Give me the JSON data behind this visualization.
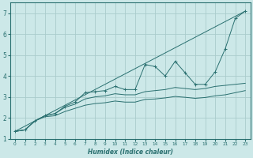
{
  "xlabel": "Humidex (Indice chaleur)",
  "xlim": [
    -0.5,
    23.5
  ],
  "ylim": [
    1.0,
    7.5
  ],
  "yticks": [
    1,
    2,
    3,
    4,
    5,
    6,
    7
  ],
  "xticks": [
    0,
    1,
    2,
    3,
    4,
    5,
    6,
    7,
    8,
    9,
    10,
    11,
    12,
    13,
    14,
    15,
    16,
    17,
    18,
    19,
    20,
    21,
    22,
    23
  ],
  "bg_color": "#cce8e8",
  "grid_color": "#aacccc",
  "line_color": "#2a7070",
  "series_jagged": {
    "x": [
      0,
      1,
      2,
      3,
      4,
      5,
      6,
      7,
      8,
      9,
      10,
      11,
      12,
      13,
      14,
      15,
      16,
      17,
      18,
      19,
      20,
      21,
      22,
      23
    ],
    "y": [
      1.35,
      1.42,
      1.85,
      2.1,
      2.2,
      2.55,
      2.75,
      3.2,
      3.25,
      3.3,
      3.5,
      3.35,
      3.35,
      4.55,
      4.45,
      4.0,
      4.7,
      4.15,
      3.6,
      3.6,
      4.2,
      5.3,
      6.75,
      7.1
    ]
  },
  "series_straight_top": {
    "x": [
      0,
      23
    ],
    "y": [
      1.35,
      7.1
    ]
  },
  "series_mid": {
    "x": [
      0,
      1,
      2,
      3,
      4,
      5,
      6,
      7,
      8,
      9,
      10,
      11,
      12,
      13,
      14,
      15,
      16,
      17,
      18,
      19,
      20,
      21,
      22,
      23
    ],
    "y": [
      1.35,
      1.42,
      1.85,
      2.1,
      2.2,
      2.5,
      2.65,
      2.9,
      3.0,
      3.05,
      3.15,
      3.1,
      3.1,
      3.25,
      3.3,
      3.35,
      3.45,
      3.4,
      3.35,
      3.4,
      3.5,
      3.55,
      3.6,
      3.65
    ]
  },
  "series_low": {
    "x": [
      0,
      1,
      2,
      3,
      4,
      5,
      6,
      7,
      8,
      9,
      10,
      11,
      12,
      13,
      14,
      15,
      16,
      17,
      18,
      19,
      20,
      21,
      22,
      23
    ],
    "y": [
      1.35,
      1.42,
      1.85,
      2.05,
      2.1,
      2.3,
      2.45,
      2.6,
      2.68,
      2.72,
      2.8,
      2.75,
      2.75,
      2.88,
      2.9,
      2.95,
      3.02,
      2.98,
      2.93,
      2.97,
      3.05,
      3.1,
      3.2,
      3.3
    ]
  }
}
